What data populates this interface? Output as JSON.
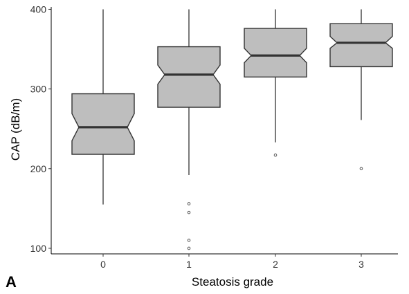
{
  "chart_data": {
    "type": "boxplot",
    "panel_label": "A",
    "xlabel": "Steatosis grade",
    "ylabel": "CAP (dB/m)",
    "categories": [
      "0",
      "1",
      "2",
      "3"
    ],
    "ylim": [
      93,
      403
    ],
    "yticks": [
      100,
      200,
      300,
      400
    ],
    "notched": true,
    "grid": false,
    "colors": {
      "box_fill": "#bebebe",
      "box_stroke": "#333333",
      "median": "#333333",
      "outlier": "#555555",
      "axis": "#000000"
    },
    "boxes": [
      {
        "category": "0",
        "whisker_low": 155,
        "q1": 218,
        "median": 252,
        "q3": 294,
        "whisker_high": 400,
        "notch_low": 235,
        "notch_high": 269,
        "outliers": []
      },
      {
        "category": "1",
        "whisker_low": 192,
        "q1": 277,
        "median": 318,
        "q3": 353,
        "whisker_high": 400,
        "notch_low": 306,
        "notch_high": 330,
        "outliers": [
          156,
          145,
          110,
          100
        ]
      },
      {
        "category": "2",
        "whisker_low": 233,
        "q1": 315,
        "median": 342,
        "q3": 376,
        "whisker_high": 400,
        "notch_low": 333,
        "notch_high": 351,
        "outliers": [
          217
        ]
      },
      {
        "category": "3",
        "whisker_low": 261,
        "q1": 328,
        "median": 358,
        "q3": 382,
        "whisker_high": 400,
        "notch_low": 351,
        "notch_high": 366,
        "outliers": [
          200
        ]
      }
    ]
  }
}
